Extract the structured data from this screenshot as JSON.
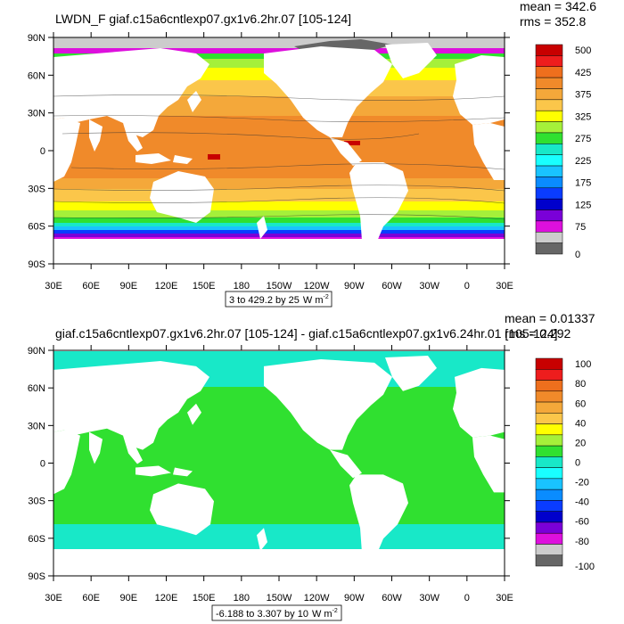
{
  "panels": [
    {
      "title": "LWDN_F giaf.c15a6cntlexp07.gx1v6.2hr.07 [105-124]",
      "stats": {
        "mean_label": "mean = 342.6",
        "rms_label": "rms = 352.8"
      },
      "range_label": "3 to 429.2 by 25",
      "units_base": "W m",
      "units_exp": "-2",
      "legend_labels": [
        "500",
        "425",
        "375",
        "325",
        "275",
        "225",
        "175",
        "125",
        "75",
        "0"
      ],
      "legend_colors": [
        "#c80000",
        "#ee1d1d",
        "#ee6f1d",
        "#f08a2a",
        "#f4a83a",
        "#fbc64a",
        "#ffff00",
        "#a5f03a",
        "#30e030",
        "#18e8c8",
        "#19ffff",
        "#19c3ff",
        "#0a8cff",
        "#0a3cff",
        "#0000cc",
        "#7a00d8",
        "#dd10dd",
        "#cccccc",
        "#666666"
      ]
    },
    {
      "title": "giaf.c15a6cntlexp07.gx1v6.2hr.07 [105-124] - giaf.c15a6cntlexp07.gx1v6.24hr.01 [105-124]",
      "stats": {
        "mean_label": "mean = 0.01337",
        "rms_label": "rms = 0.292"
      },
      "range_label": "-6.188 to 3.307 by 10",
      "units_base": "W m",
      "units_exp": "-2",
      "legend_labels": [
        "100",
        "80",
        "60",
        "40",
        "20",
        "0",
        "-20",
        "-40",
        "-60",
        "-80",
        "-100"
      ],
      "legend_colors": [
        "#c80000",
        "#ee1d1d",
        "#ee6f1d",
        "#f08a2a",
        "#f4a83a",
        "#fbc64a",
        "#ffff00",
        "#a5f03a",
        "#30e030",
        "#18e8c8",
        "#19ffff",
        "#19c3ff",
        "#0a8cff",
        "#0a3cff",
        "#0000cc",
        "#7a00d8",
        "#dd10dd",
        "#cccccc",
        "#666666"
      ]
    }
  ],
  "axes": {
    "lat_labels": [
      "90N",
      "60N",
      "30N",
      "0",
      "30S",
      "60S",
      "90S"
    ],
    "lon_labels": [
      "30E",
      "60E",
      "90E",
      "120E",
      "150E",
      "180",
      "150W",
      "120W",
      "90W",
      "60W",
      "30W",
      "0",
      "30E"
    ]
  },
  "colors": {
    "land": "#ffffff",
    "diff_ocean": "#30e030",
    "diff_high_lat": "#18e8c8",
    "contour": "#333333"
  }
}
